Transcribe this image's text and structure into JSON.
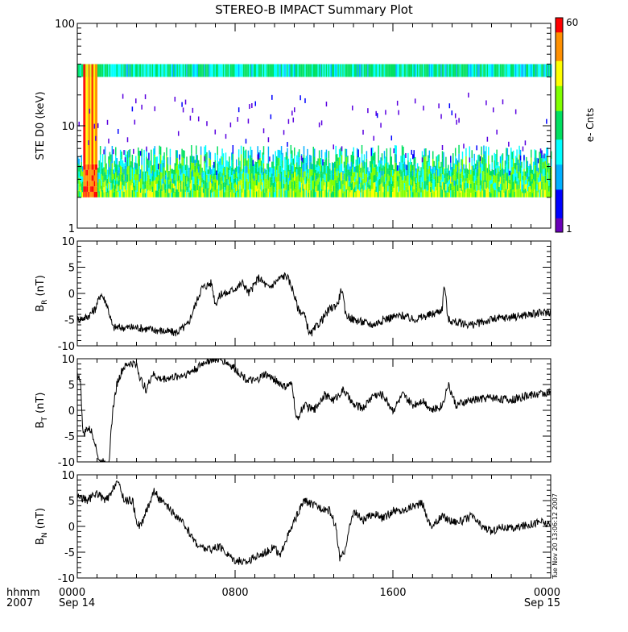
{
  "chart_data": [
    {
      "panel_id": "spectrogram",
      "type": "heatmap",
      "title": "STEREO-B IMPACT Summary Plot",
      "ylabel": "STE D0 (keV)",
      "yscale": "log",
      "ylim": [
        1,
        100
      ],
      "yticks": [
        1,
        10,
        100
      ],
      "ytick_labels": [
        "1",
        "10",
        "100"
      ],
      "xlim": [
        0,
        24
      ],
      "colorbar": {
        "label": "e- Cnts",
        "min": 1,
        "max": 60,
        "tick_labels": [
          "1",
          "60"
        ],
        "colors": [
          "#6a00b8",
          "#0000ff",
          "#00b0ff",
          "#00ffff",
          "#00e060",
          "#80ff00",
          "#ffff00",
          "#ff9000",
          "#ff0000"
        ]
      },
      "features": [
        {
          "name": "electron band",
          "energy_keV": [
            2.0,
            4.2
          ],
          "hours": [
            0,
            24
          ],
          "typical_counts": 8
        },
        {
          "name": "upper channel",
          "energy_keV": [
            30,
            40
          ],
          "hours": [
            0,
            24
          ],
          "typical_counts": 5
        },
        {
          "name": "burst",
          "energy_keV": [
            2.0,
            40
          ],
          "hours": [
            0.3,
            1.0
          ],
          "peak_counts": 60
        }
      ]
    },
    {
      "panel_id": "BR",
      "type": "line",
      "ylabel": "B",
      "ylabel_sub": "R",
      "yunit": "(nT)",
      "ylim": [
        -10,
        10
      ],
      "yticks": [
        -10,
        -5,
        0,
        5,
        10
      ],
      "ytick_labels": [
        "-10",
        "-5",
        "0",
        "5",
        "10"
      ],
      "xlim": [
        0,
        24
      ],
      "series": [
        {
          "x": [
            0,
            0.5,
            0.9,
            1.2,
            1.5,
            1.8,
            2.2,
            3.0,
            4.0,
            5.0,
            5.6,
            5.9,
            6.3,
            6.8,
            7.0,
            7.3,
            7.6,
            8.0,
            8.4,
            8.7,
            9.2,
            9.7,
            10.0,
            10.3,
            10.6,
            10.9,
            11.2,
            11.5,
            11.8,
            12.2,
            12.8,
            13.2,
            13.4,
            13.6,
            14.0,
            14.5,
            15.0,
            15.5,
            16.0,
            16.5,
            17.0,
            18.0,
            18.5,
            18.6,
            18.8,
            19.2,
            20.0,
            21.0,
            22.0,
            23.0,
            24.0
          ],
          "y": [
            -5,
            -4.5,
            -3,
            0,
            -2,
            -6.5,
            -6.5,
            -6.5,
            -7,
            -7.5,
            -6,
            -3,
            1,
            2,
            -2,
            0,
            0,
            1,
            2,
            0,
            3,
            1,
            2,
            3,
            3.5,
            1,
            -3,
            -4,
            -8,
            -6,
            -3,
            -2,
            1,
            -4,
            -5,
            -5.5,
            -6,
            -5,
            -4.5,
            -4.2,
            -5,
            -4,
            -3,
            2,
            -5,
            -5.5,
            -6,
            -5,
            -4.5,
            -4,
            -3.5
          ]
        }
      ]
    },
    {
      "panel_id": "BT",
      "type": "line",
      "ylabel": "B",
      "ylabel_sub": "T",
      "yunit": "(nT)",
      "ylim": [
        -10,
        10
      ],
      "yticks": [
        -10,
        -5,
        0,
        5,
        10
      ],
      "ytick_labels": [
        "-10",
        "-5",
        "0",
        "5",
        "10"
      ],
      "xlim": [
        0,
        24
      ],
      "series": [
        {
          "x": [
            0,
            0.15,
            0.3,
            0.5,
            0.7,
            0.9,
            1.1,
            1.3,
            1.6,
            1.8,
            2.0,
            2.3,
            2.6,
            3.0,
            3.2,
            3.5,
            3.8,
            4.2,
            5.0,
            5.5,
            6.0,
            6.5,
            7.0,
            7.5,
            8.0,
            8.3,
            8.6,
            9.0,
            9.5,
            10.0,
            10.5,
            10.9,
            11.1,
            11.5,
            12.0,
            12.5,
            13.0,
            13.5,
            14.0,
            14.5,
            15.0,
            15.5,
            16.0,
            16.5,
            17.0,
            17.5,
            18.0,
            18.5,
            18.8,
            19.2,
            20.0,
            21.0,
            22.0,
            23.0,
            24.0
          ],
          "y": [
            7,
            6,
            -5,
            -3.5,
            -4,
            -6,
            -10,
            -10,
            -10,
            0,
            5,
            8,
            9,
            9,
            6,
            4,
            7,
            6,
            6.5,
            7,
            8,
            9.5,
            10,
            9.5,
            8,
            7,
            6,
            5.5,
            7,
            6,
            4.5,
            5,
            -2,
            1,
            0,
            3,
            2,
            4,
            1,
            0.5,
            3,
            3,
            0,
            3,
            1,
            2,
            0,
            1,
            5,
            1,
            2,
            2.5,
            2,
            3,
            3.5
          ]
        }
      ]
    },
    {
      "panel_id": "BN",
      "type": "line",
      "ylabel": "B",
      "ylabel_sub": "N",
      "yunit": "(nT)",
      "ylim": [
        -10,
        10
      ],
      "yticks": [
        -10,
        -5,
        0,
        5,
        10
      ],
      "ytick_labels": [
        "-10",
        "-5",
        "0",
        "5",
        "10"
      ],
      "xlim": [
        0,
        24
      ],
      "series": [
        {
          "x": [
            0,
            0.5,
            1.0,
            1.4,
            1.7,
            2.0,
            2.4,
            2.8,
            3.0,
            3.2,
            3.5,
            3.9,
            4.2,
            4.5,
            5.0,
            5.5,
            5.8,
            6.2,
            6.8,
            7.2,
            7.5,
            8.0,
            8.5,
            9.0,
            9.5,
            10.0,
            10.3,
            10.5,
            10.8,
            11.0,
            11.5,
            12.0,
            12.5,
            12.8,
            13.1,
            13.3,
            13.5,
            14.0,
            14.5,
            15.0,
            15.5,
            16.0,
            16.5,
            17.0,
            17.5,
            17.8,
            18.0,
            18.5,
            19.0,
            19.5,
            20.0,
            20.5,
            21.0,
            21.5,
            22.0,
            22.5,
            23.0,
            23.5,
            24.0
          ],
          "y": [
            6,
            5,
            6.5,
            5,
            6,
            9,
            5,
            5,
            1,
            0,
            3,
            7,
            5,
            4,
            2,
            0,
            -2,
            -4,
            -4.5,
            -4,
            -5,
            -6.5,
            -7,
            -6,
            -5,
            -4,
            -6,
            -3,
            -1,
            1,
            5,
            4,
            3.5,
            3,
            0,
            -6,
            -5.5,
            3,
            1,
            2.5,
            1.5,
            3,
            3,
            4,
            4.5,
            1,
            0,
            2,
            1,
            1,
            2,
            0,
            -1,
            0,
            -0.5,
            0,
            0.5,
            1,
            0
          ]
        }
      ]
    }
  ],
  "xaxis": {
    "major_tick_labels": [
      "0000",
      "0800",
      "1600",
      "0000"
    ],
    "date_labels": [
      "Sep 14",
      "",
      "",
      "Sep 15"
    ],
    "row_label_format": "hhmm",
    "row_label_year": "2007"
  },
  "timestamp": "Tue Nov 20 13:06:12 2007"
}
